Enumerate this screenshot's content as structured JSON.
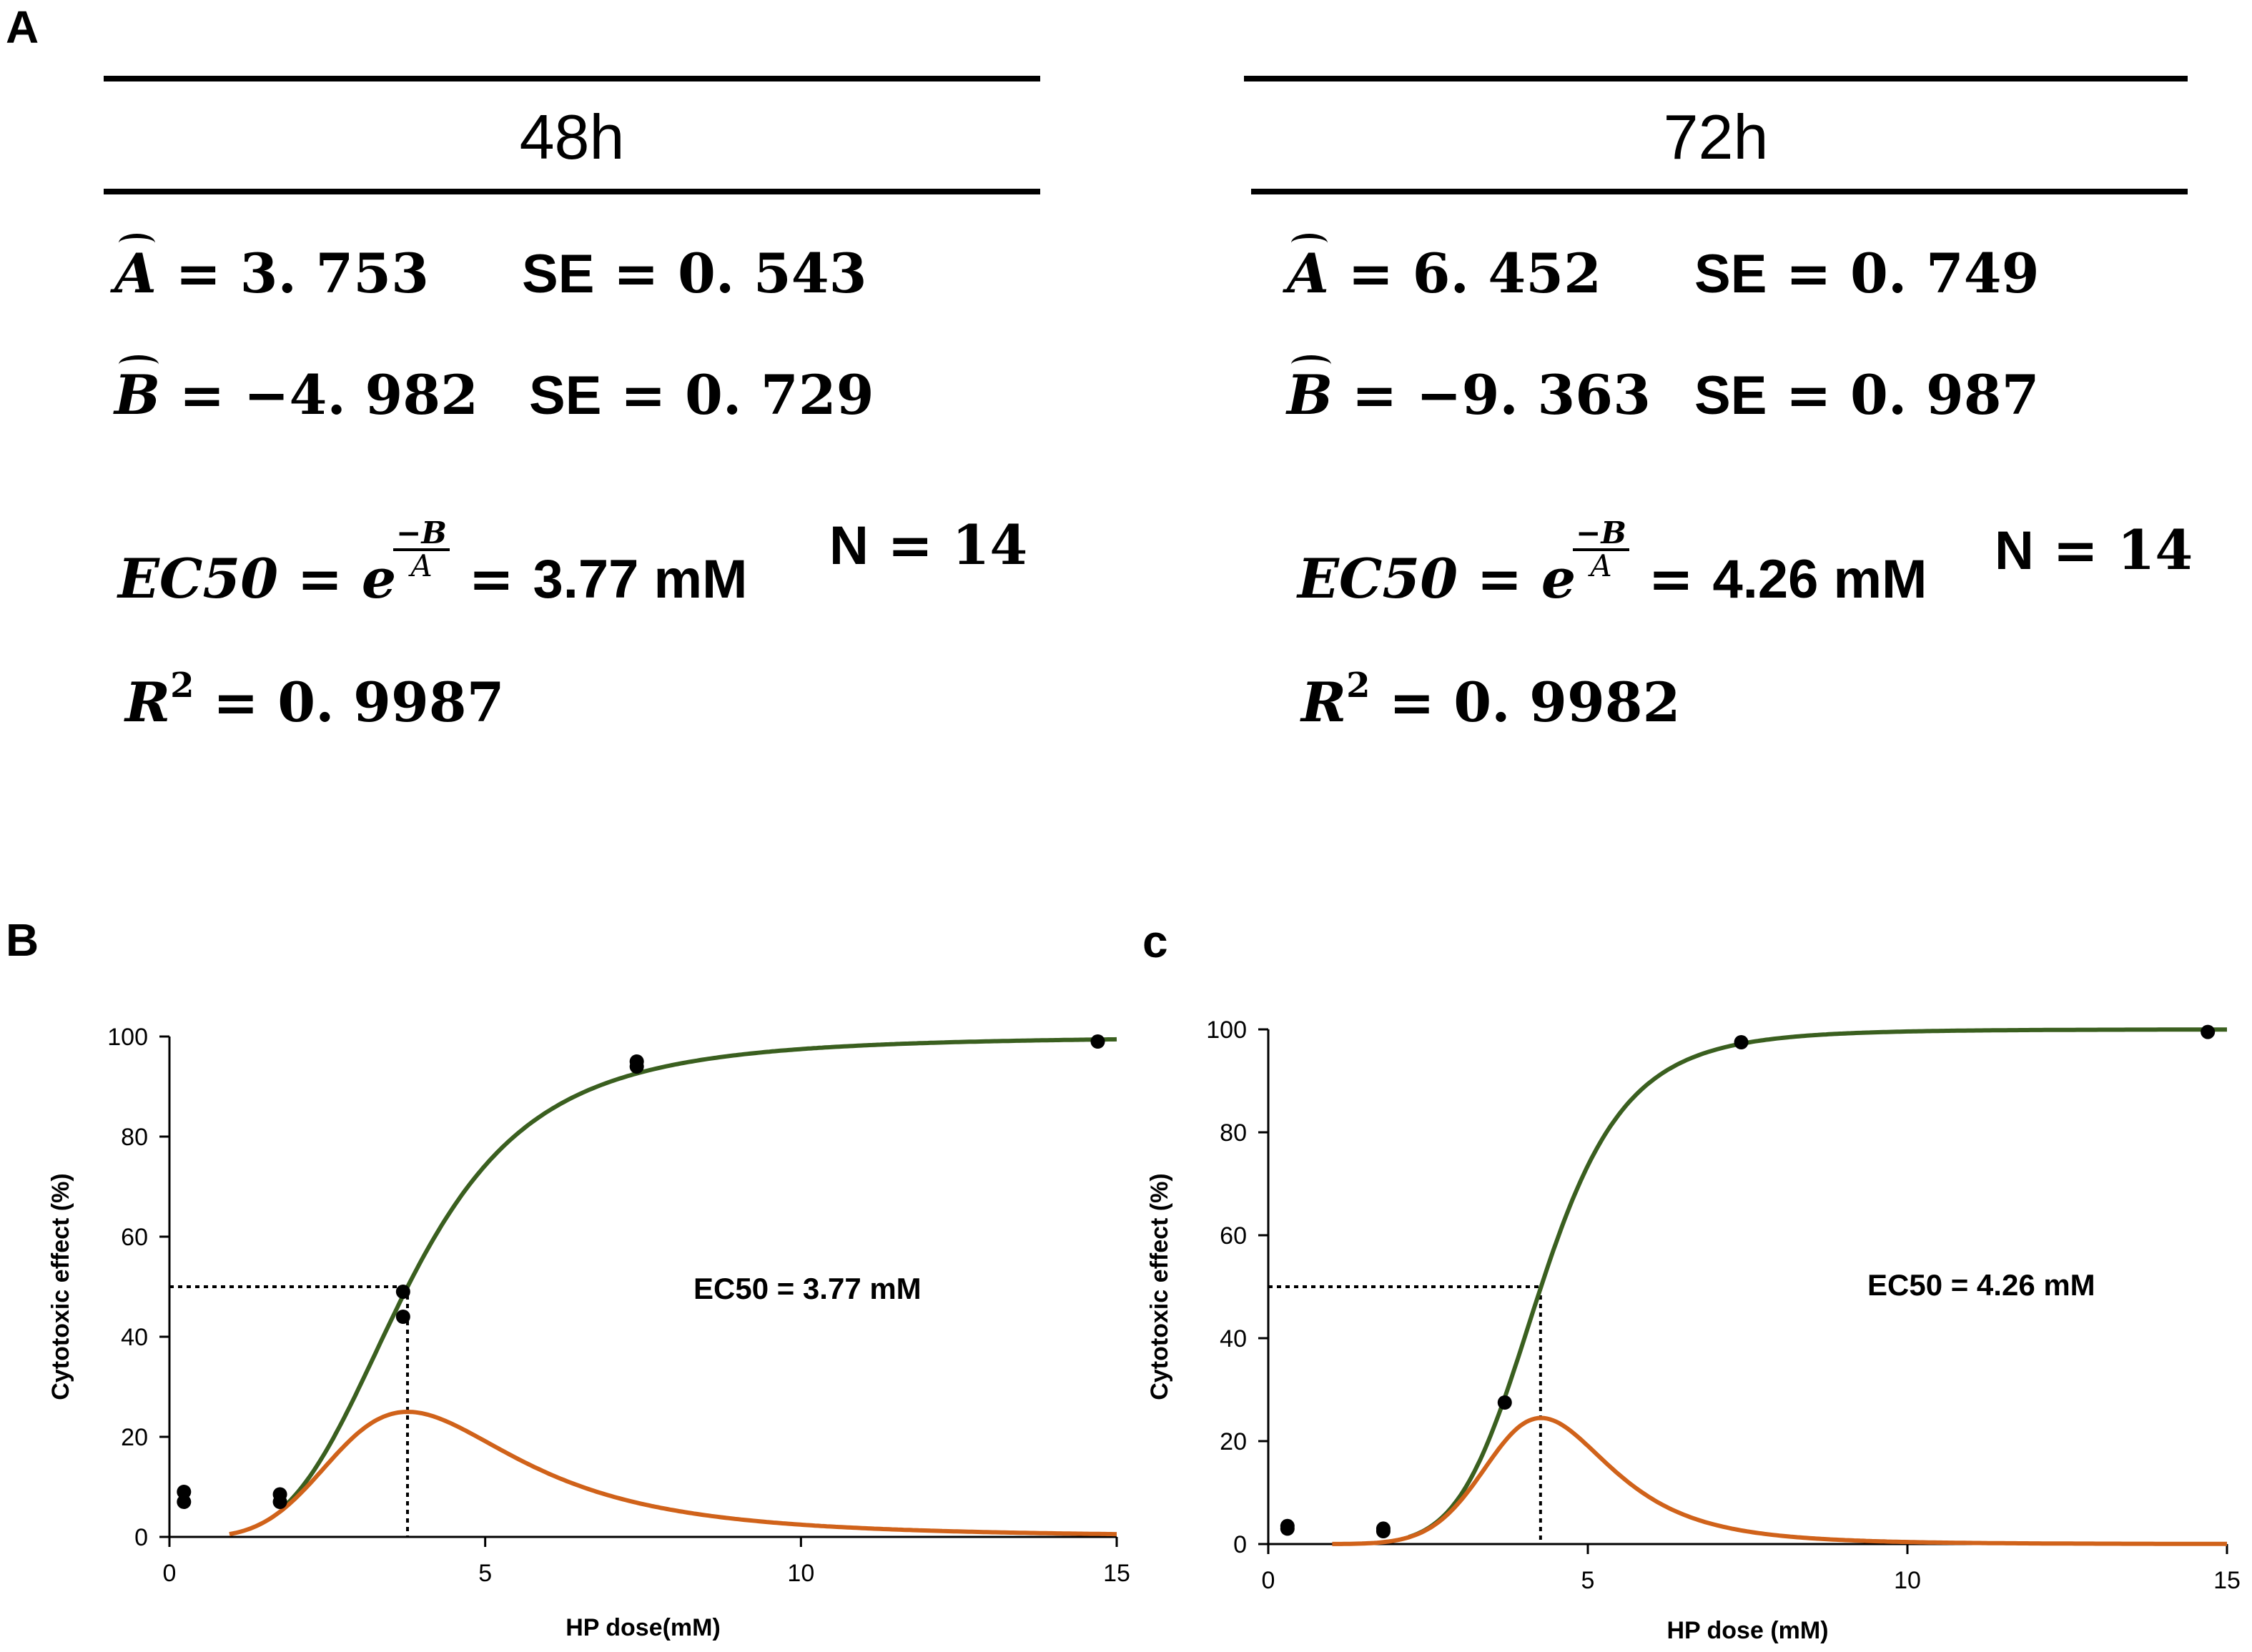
{
  "panels": {
    "a": "A",
    "b": "B",
    "c": "c"
  },
  "table": {
    "left": {
      "title": "48h",
      "A_hat": "3. 753",
      "A_se": "0. 543",
      "B_hat": "−4. 982",
      "B_se": "0. 729",
      "ec50": "3.77 mM",
      "n": "14",
      "r2": "0. 9987"
    },
    "right": {
      "title": "72h",
      "A_hat": "6. 452",
      "A_se": "0. 749",
      "B_hat": "−9. 363",
      "B_se": "0. 987",
      "ec50": "4.26 mM",
      "n": "14",
      "r2": "0. 9982"
    },
    "symbols": {
      "A": "A",
      "B": "B",
      "eq": "=",
      "se": "SE",
      "ec50_lbl": "EC50",
      "e": "e",
      "neg_b": "−B",
      "a_den": "A",
      "n_lbl": "N",
      "r": "R",
      "two": "2"
    }
  },
  "chart_data": [
    {
      "type": "line",
      "panel": "B",
      "xlabel": "HP dose(mM)",
      "ylabel": "Cytotoxic effect (%)",
      "xlim": [
        0,
        15
      ],
      "ylim": [
        0,
        100
      ],
      "xticks": [
        0,
        5,
        10,
        15
      ],
      "yticks": [
        0,
        20,
        40,
        60,
        80,
        100
      ],
      "xtick_labels": [
        "0",
        "5",
        "10",
        "15"
      ],
      "ytick_labels": [
        "0",
        "20",
        "40",
        "60",
        "80",
        "100"
      ],
      "annotation": "EC50 = 3.77 mM",
      "ec50": 3.77,
      "fit": {
        "A": 3.753,
        "B": -4.982
      },
      "colors": {
        "curve": "#3a5f1f",
        "derivative": "#d0621a",
        "points": "#000000"
      },
      "points": [
        {
          "x": 0.23,
          "y": 7
        },
        {
          "x": 0.23,
          "y": 9
        },
        {
          "x": 1.75,
          "y": 7
        },
        {
          "x": 1.75,
          "y": 8.5
        },
        {
          "x": 3.7,
          "y": 44
        },
        {
          "x": 3.7,
          "y": 49
        },
        {
          "x": 7.4,
          "y": 94
        },
        {
          "x": 7.4,
          "y": 95
        },
        {
          "x": 14.7,
          "y": 99
        }
      ],
      "series": [
        {
          "name": "fitted sigmoid",
          "x_range": [
            1.8,
            15
          ]
        },
        {
          "name": "derivative curve",
          "peak": 25,
          "x_range": [
            0.95,
            15
          ]
        }
      ]
    },
    {
      "type": "line",
      "panel": "c",
      "xlabel": "HP dose (mM)",
      "ylabel": "Cytotoxic effect (%)",
      "xlim": [
        0,
        15
      ],
      "ylim": [
        0,
        100
      ],
      "xticks": [
        0,
        5,
        10,
        15
      ],
      "yticks": [
        0,
        20,
        40,
        60,
        80,
        100
      ],
      "xtick_labels": [
        "0",
        "5",
        "10",
        "15"
      ],
      "ytick_labels": [
        "0",
        "20",
        "40",
        "60",
        "80",
        "100"
      ],
      "annotation": "EC50 = 4.26 mM",
      "ec50": 4.26,
      "fit": {
        "A": 6.452,
        "B": -9.363
      },
      "colors": {
        "curve": "#3a5f1f",
        "derivative": "#d0621a",
        "points": "#000000"
      },
      "points": [
        {
          "x": 0.3,
          "y": 3
        },
        {
          "x": 0.3,
          "y": 3.5
        },
        {
          "x": 1.8,
          "y": 2.5
        },
        {
          "x": 1.8,
          "y": 3
        },
        {
          "x": 3.7,
          "y": 27.5
        },
        {
          "x": 7.4,
          "y": 97.5
        },
        {
          "x": 14.7,
          "y": 99.5
        }
      ],
      "series": [
        {
          "name": "fitted sigmoid",
          "x_range": [
            2.2,
            15
          ]
        },
        {
          "name": "derivative curve",
          "peak": 24.5,
          "x_range": [
            1.0,
            15
          ]
        }
      ]
    }
  ]
}
